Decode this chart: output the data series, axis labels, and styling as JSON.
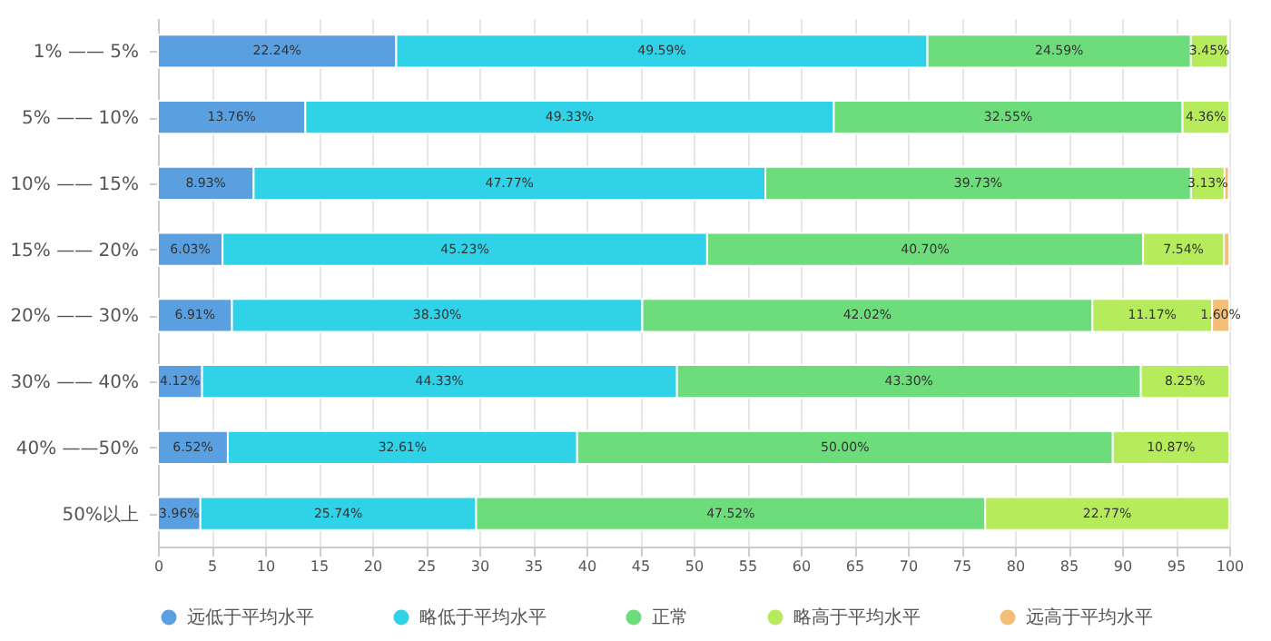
{
  "chart_data": {
    "type": "bar",
    "orientation": "horizontal",
    "stacked": true,
    "categories": [
      "1% —— 5%",
      "5% —— 10%",
      "10% —— 15%",
      "15% —— 20%",
      "20% —— 30%",
      "30% —— 40%",
      "40% ——50%",
      "50%以上"
    ],
    "series": [
      {
        "name": "远低于平均水平",
        "color": "#5a9fe0",
        "values": [
          22.24,
          13.76,
          8.93,
          6.03,
          6.91,
          4.12,
          6.52,
          3.96
        ],
        "value_labels": [
          "22.24%",
          "13.76%",
          "8.93%",
          "6.03%",
          "6.91%",
          "4.12%",
          "6.52%",
          "3.96%"
        ]
      },
      {
        "name": "略低于平均水平",
        "color": "#30d2e8",
        "values": [
          49.59,
          49.33,
          47.77,
          45.23,
          38.3,
          44.33,
          32.61,
          25.74
        ],
        "value_labels": [
          "49.59%",
          "49.33%",
          "47.77%",
          "45.23%",
          "38.30%",
          "44.33%",
          "32.61%",
          "25.74%"
        ]
      },
      {
        "name": "正常",
        "color": "#6ddc7a",
        "values": [
          24.59,
          32.55,
          39.73,
          40.7,
          42.02,
          43.3,
          50.0,
          47.52
        ],
        "value_labels": [
          "24.59%",
          "32.55%",
          "39.73%",
          "40.70%",
          "42.02%",
          "43.30%",
          "50.00%",
          "47.52%"
        ]
      },
      {
        "name": "略高于平均水平",
        "color": "#b6ec5c",
        "values": [
          3.45,
          4.36,
          3.13,
          7.54,
          11.17,
          8.25,
          10.87,
          22.77
        ],
        "value_labels": [
          "3.45%",
          "4.36%",
          "3.13%",
          "7.54%",
          "11.17%",
          "8.25%",
          "10.87%",
          "22.77%"
        ]
      },
      {
        "name": "远高于平均水平",
        "color": "#f5be78",
        "values": [
          null,
          null,
          0.4,
          0.5,
          1.6,
          null,
          null,
          null
        ],
        "value_labels": [
          null,
          null,
          null,
          null,
          "1.60%",
          null,
          null,
          null
        ]
      }
    ],
    "xlim": [
      0,
      100
    ],
    "xticks": [
      0,
      5,
      10,
      15,
      20,
      25,
      30,
      35,
      40,
      45,
      50,
      55,
      60,
      65,
      70,
      75,
      80,
      85,
      90,
      95,
      100
    ],
    "grid": "x",
    "legend": "bottom"
  }
}
